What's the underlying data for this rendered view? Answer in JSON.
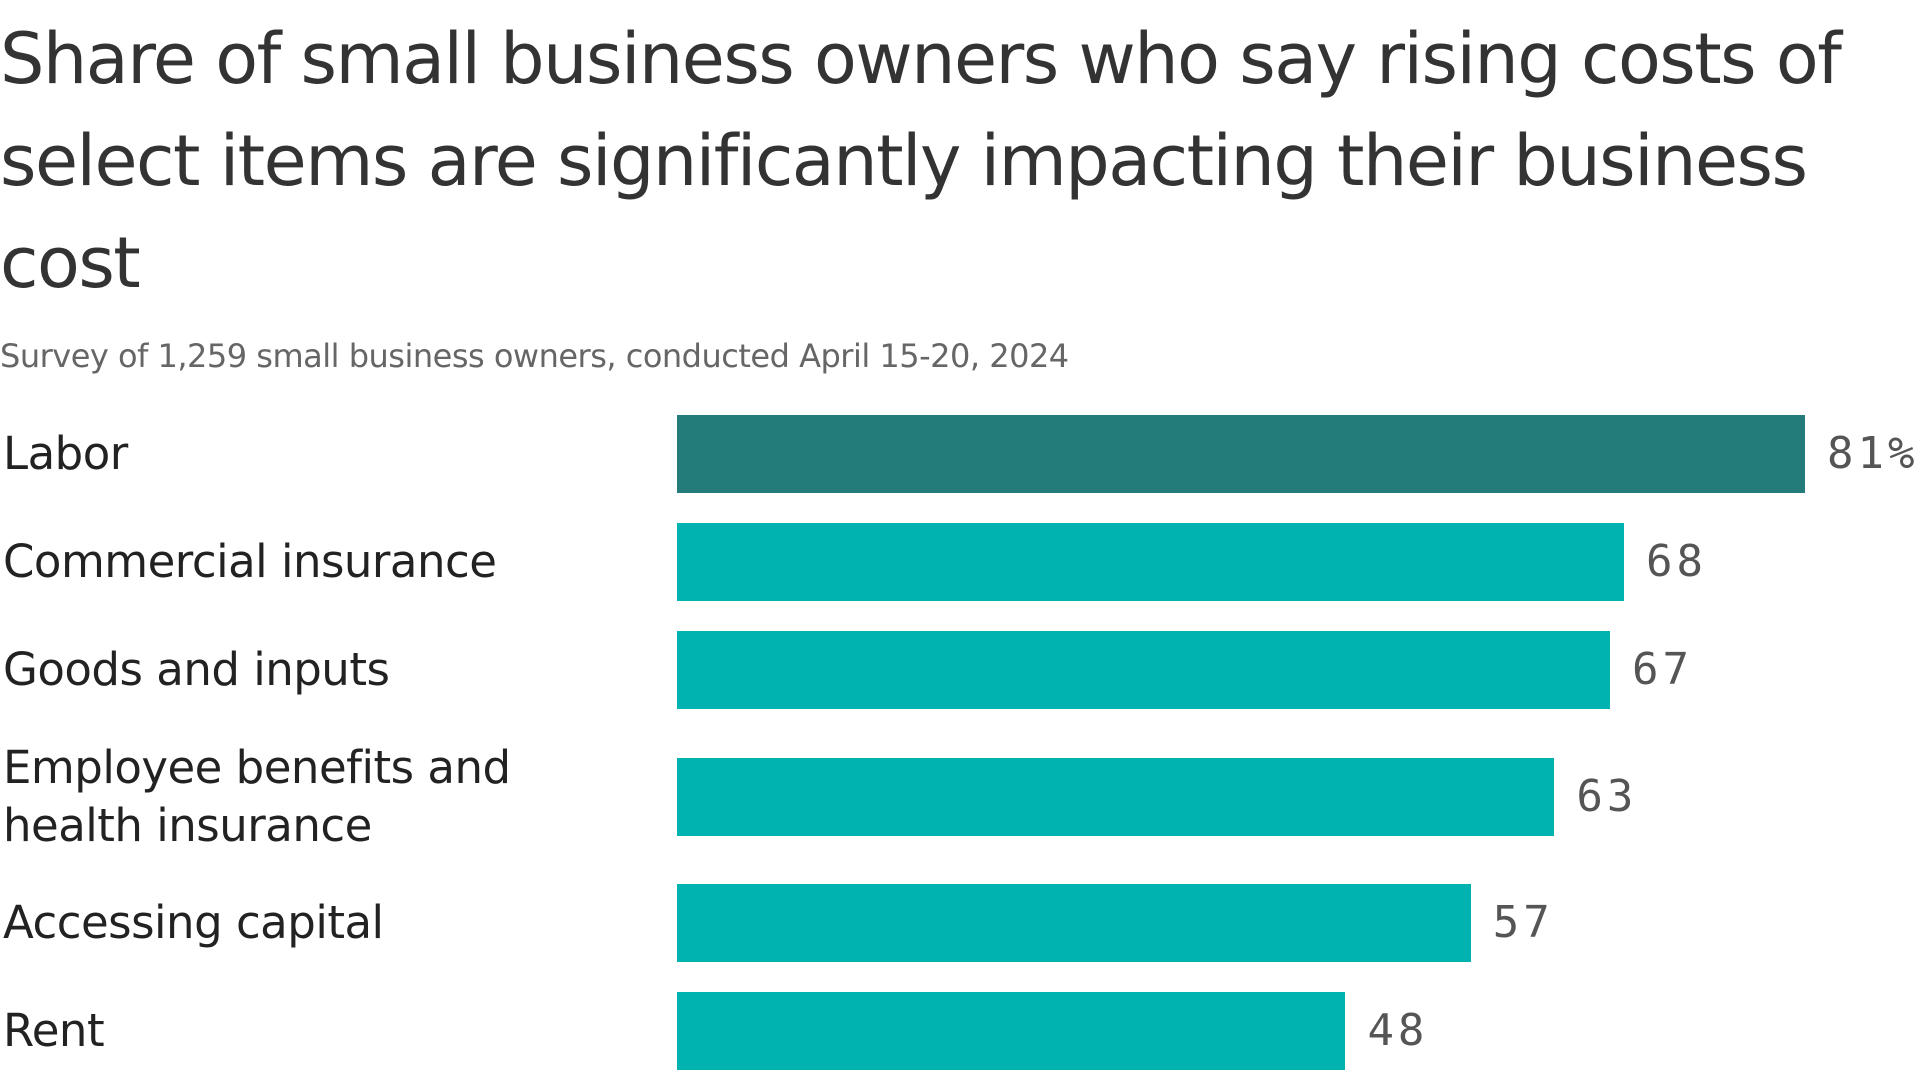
{
  "chart_data": {
    "type": "bar",
    "orientation": "horizontal",
    "title": "Share of small business owners who say rising costs of select items are significantly impacting their business cost",
    "subtitle": "Survey of 1,259 small business owners, conducted April 15-20, 2024",
    "categories": [
      "Labor",
      "Commercial insurance",
      "Goods and inputs",
      "Employee benefits and health insurance",
      "Accessing capital",
      "Rent"
    ],
    "values": [
      81,
      68,
      67,
      63,
      57,
      48
    ],
    "value_labels": [
      "81%",
      "68",
      "67",
      "63",
      "57",
      "48"
    ],
    "unit": "%",
    "xlim": [
      0,
      81
    ],
    "grid": false,
    "legend": "none"
  },
  "colors": {
    "highlight": "#237c79",
    "bar": "#00b2b0",
    "text": "#222222",
    "subtitle": "#666666",
    "value": "#555555"
  }
}
